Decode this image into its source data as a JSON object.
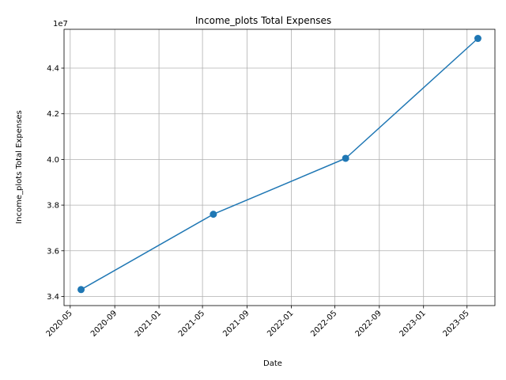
{
  "chart_data": {
    "type": "line",
    "title": "Income_plots Total Expenses",
    "xlabel": "Date",
    "ylabel": "Income_plots Total Expenses",
    "y_offset_label": "1e7",
    "x_ticks": [
      "2020-05",
      "2020-09",
      "2021-01",
      "2021-05",
      "2021-09",
      "2022-01",
      "2022-05",
      "2022-09",
      "2023-01",
      "2023-05"
    ],
    "y_ticks": [
      "3.4",
      "3.6",
      "3.8",
      "4.0",
      "4.2",
      "4.4"
    ],
    "series": [
      {
        "x": [
          "2020-05-31",
          "2021-05-31",
          "2022-05-31",
          "2023-05-31"
        ],
        "y": [
          34300000,
          37600000,
          40050000,
          45300000
        ]
      }
    ],
    "xlim": [
      "2020-04-14",
      "2023-07-17"
    ],
    "ylim": [
      33600000,
      45700000
    ],
    "grid": true,
    "line_color": "#1f77b4"
  }
}
